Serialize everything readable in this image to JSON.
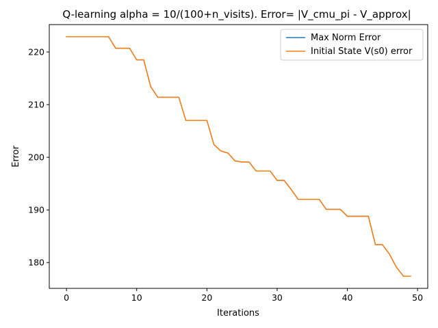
{
  "chart_data": {
    "type": "line",
    "title": "Q-learning alpha = 10/(100+n_visits). Error= |V_cmu_pi - V_approx|",
    "xlabel": "Iterations",
    "ylabel": "Error",
    "xlim": [
      -2.45,
      51.45
    ],
    "ylim": [
      175.1,
      225.2
    ],
    "x_ticks": [
      0,
      10,
      20,
      30,
      40,
      50
    ],
    "y_ticks": [
      180,
      190,
      200,
      210,
      220
    ],
    "grid": false,
    "legend_position": "upper right",
    "x": [
      0,
      1,
      2,
      3,
      4,
      5,
      6,
      7,
      8,
      9,
      10,
      11,
      12,
      13,
      14,
      15,
      16,
      17,
      18,
      19,
      20,
      21,
      22,
      23,
      24,
      25,
      26,
      27,
      28,
      29,
      30,
      31,
      32,
      33,
      34,
      35,
      36,
      37,
      38,
      39,
      40,
      41,
      42,
      43,
      44,
      45,
      46,
      47,
      48,
      49
    ],
    "series": [
      {
        "name": "Max Norm Error",
        "color": "#1f77b4",
        "values": [
          222.9,
          222.9,
          222.9,
          222.9,
          222.9,
          222.9,
          222.9,
          220.7,
          220.7,
          220.7,
          218.5,
          218.5,
          213.4,
          211.4,
          211.4,
          211.4,
          211.4,
          207.0,
          207.0,
          207.0,
          207.0,
          202.4,
          201.2,
          200.8,
          199.3,
          199.1,
          199.1,
          197.4,
          197.4,
          197.4,
          195.6,
          195.6,
          193.9,
          192.0,
          192.0,
          192.0,
          192.0,
          190.1,
          190.1,
          190.1,
          188.8,
          188.8,
          188.8,
          188.8,
          183.4,
          183.4,
          181.6,
          179.1,
          177.4,
          177.4
        ]
      },
      {
        "name": "Initial State V(s0) error",
        "color": "#ff7f0e",
        "values": [
          222.9,
          222.9,
          222.9,
          222.9,
          222.9,
          222.9,
          222.9,
          220.7,
          220.7,
          220.7,
          218.5,
          218.5,
          213.4,
          211.4,
          211.4,
          211.4,
          211.4,
          207.0,
          207.0,
          207.0,
          207.0,
          202.4,
          201.2,
          200.8,
          199.3,
          199.1,
          199.1,
          197.4,
          197.4,
          197.4,
          195.6,
          195.6,
          193.9,
          192.0,
          192.0,
          192.0,
          192.0,
          190.1,
          190.1,
          190.1,
          188.8,
          188.8,
          188.8,
          188.8,
          183.4,
          183.4,
          181.6,
          179.1,
          177.4,
          177.4
        ]
      }
    ]
  }
}
